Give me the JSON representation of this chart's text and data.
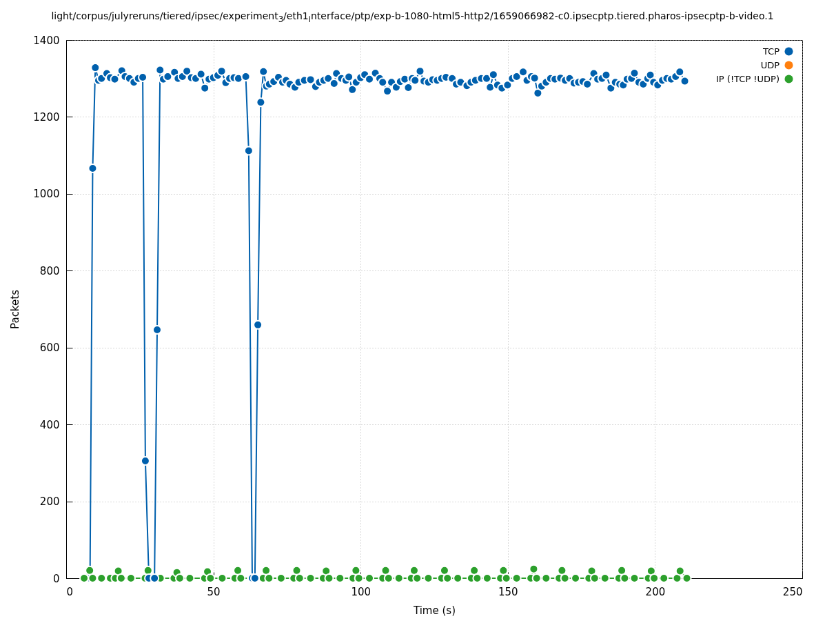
{
  "chart_data": {
    "type": "line",
    "title": "light/corpus/julyreruns/tiered/ipsec/experiment$_{3}$/eth1$_{i}$nterface/ptp/exp-b-1080-html5-http2/1659066982-c0.ipsecptp.tiered.pharos-ipsecptp-b-video.1",
    "xlabel": "Time (s)",
    "ylabel": "Packets",
    "xlim": [
      0,
      250
    ],
    "xticks": [
      0,
      50,
      100,
      150,
      200,
      250
    ],
    "ylim": [
      0,
      1400
    ],
    "yticks": [
      0,
      200,
      400,
      600,
      800,
      1000,
      1200,
      1400
    ],
    "grid": true,
    "legend": "top right",
    "marker": "circle",
    "line_style": "solid",
    "series": [
      {
        "name": "TCP",
        "color": "#0060ad",
        "x": [
          8.1,
          9.0,
          9.9,
          11,
          12,
          13.8,
          15,
          16.5,
          18.9,
          20,
          21.5,
          23.0,
          24.5,
          26.0,
          26.9,
          28.1,
          30.0,
          30.9,
          31.9,
          33,
          34.5,
          36.8,
          38,
          39.5,
          41.0,
          42.5,
          44,
          45.8,
          47.1,
          48.5,
          50,
          51.5,
          52.8,
          54.2,
          55.5,
          57,
          58.5,
          61.0,
          62.0,
          63.2,
          64.1,
          65.1,
          66.1,
          67.0,
          68,
          69,
          70.5,
          72.1,
          73.5,
          74.7,
          76,
          77.7,
          79,
          80.9,
          83.0,
          84.7,
          86,
          87.5,
          89,
          91.0,
          91.8,
          93.5,
          95,
          96.0,
          97.2,
          98.5,
          100,
          101.4,
          103,
          105.0,
          106.5,
          107.5,
          109.1,
          110.5,
          112.1,
          113.5,
          115,
          116.2,
          117.5,
          118.5,
          120.2,
          121.5,
          123,
          124.5,
          126,
          127.5,
          129,
          131.1,
          132.5,
          134,
          136.1,
          137.5,
          139,
          141,
          142.8,
          144.0,
          145.1,
          146.5,
          148,
          149.9,
          151.5,
          153,
          155.2,
          156.5,
          158,
          159.1,
          160.2,
          161.5,
          163,
          164.5,
          166,
          167.9,
          169.5,
          171,
          172.5,
          174,
          175.5,
          177,
          179.2,
          180.5,
          182,
          183.4,
          185.0,
          186.5,
          188,
          189.2,
          190.5,
          192,
          193.0,
          194.5,
          196,
          197.5,
          198.4,
          199.5,
          200.9,
          202.5,
          204,
          205.5,
          207,
          208.4,
          210.1
        ],
        "values": [
          0,
          1066,
          1328,
          1295,
          1300,
          1313,
          1302,
          1298,
          1320,
          1305,
          1300,
          1290,
          1300,
          1303,
          305,
          0,
          0,
          646,
          1322,
          1298,
          1305,
          1316,
          1300,
          1305,
          1319,
          1302,
          1300,
          1311,
          1275,
          1298,
          1302,
          1308,
          1319,
          1289,
          1300,
          1302,
          1300,
          1305,
          1112,
          0,
          0,
          659,
          1238,
          1318,
          1280,
          1285,
          1292,
          1303,
          1290,
          1295,
          1285,
          1277,
          1290,
          1295,
          1297,
          1279,
          1290,
          1295,
          1300,
          1287,
          1313,
          1300,
          1295,
          1304,
          1271,
          1290,
          1302,
          1310,
          1298,
          1314,
          1300,
          1290,
          1267,
          1290,
          1277,
          1292,
          1298,
          1276,
          1300,
          1295,
          1319,
          1293,
          1290,
          1297,
          1295,
          1300,
          1303,
          1300,
          1285,
          1290,
          1281,
          1290,
          1295,
          1300,
          1300,
          1277,
          1310,
          1283,
          1275,
          1283,
          1300,
          1305,
          1317,
          1295,
          1305,
          1301,
          1262,
          1280,
          1290,
          1300,
          1298,
          1301,
          1295,
          1300,
          1288,
          1290,
          1292,
          1285,
          1313,
          1298,
          1300,
          1309,
          1275,
          1290,
          1285,
          1283,
          1298,
          1300,
          1314,
          1290,
          1285,
          1300,
          1309,
          1290,
          1283,
          1295,
          1300,
          1298,
          1305,
          1317,
          1293
        ]
      },
      {
        "name": "UDP",
        "color": "#ff7f0e"
      },
      {
        "name": "IP (!TCP  !UDP)",
        "color": "#2ca02c",
        "x": [
          6.1,
          8.0,
          9,
          12,
          15,
          16.7,
          17.7,
          18.7,
          22,
          26.8,
          27.8,
          28.8,
          32,
          36.6,
          37.6,
          38.6,
          42,
          47,
          48,
          49,
          53,
          57.3,
          58.3,
          59.3,
          63,
          66.9,
          67.9,
          68.9,
          73,
          77.3,
          78.3,
          79.3,
          83,
          87.3,
          88.3,
          89.3,
          93,
          97.4,
          98.4,
          99.4,
          103,
          107.5,
          108.5,
          109.5,
          113,
          117.2,
          118.2,
          119.2,
          123,
          127.5,
          128.5,
          129.5,
          133,
          137.6,
          138.6,
          139.6,
          143,
          147.5,
          148.5,
          149.5,
          153,
          157.8,
          158.8,
          159.8,
          163,
          167.4,
          168.4,
          169.4,
          173,
          177.5,
          178.5,
          179.5,
          183,
          187.7,
          188.7,
          189.7,
          193,
          197.7,
          198.7,
          199.7,
          203,
          207.5,
          208.5,
          210.8
        ],
        "values": [
          0,
          20,
          0,
          0,
          0,
          0,
          19,
          0,
          0,
          0,
          20,
          0,
          0,
          0,
          15,
          0,
          0,
          0,
          17,
          0,
          0,
          0,
          20,
          0,
          0,
          0,
          20,
          0,
          0,
          0,
          20,
          0,
          0,
          0,
          19,
          0,
          0,
          0,
          20,
          0,
          0,
          0,
          20,
          0,
          0,
          0,
          20,
          0,
          0,
          0,
          20,
          0,
          0,
          0,
          20,
          0,
          0,
          0,
          20,
          0,
          0,
          0,
          24,
          0,
          0,
          0,
          20,
          0,
          0,
          0,
          19,
          0,
          0,
          0,
          20,
          0,
          0,
          0,
          19,
          0,
          0,
          0,
          19,
          0
        ]
      }
    ]
  }
}
